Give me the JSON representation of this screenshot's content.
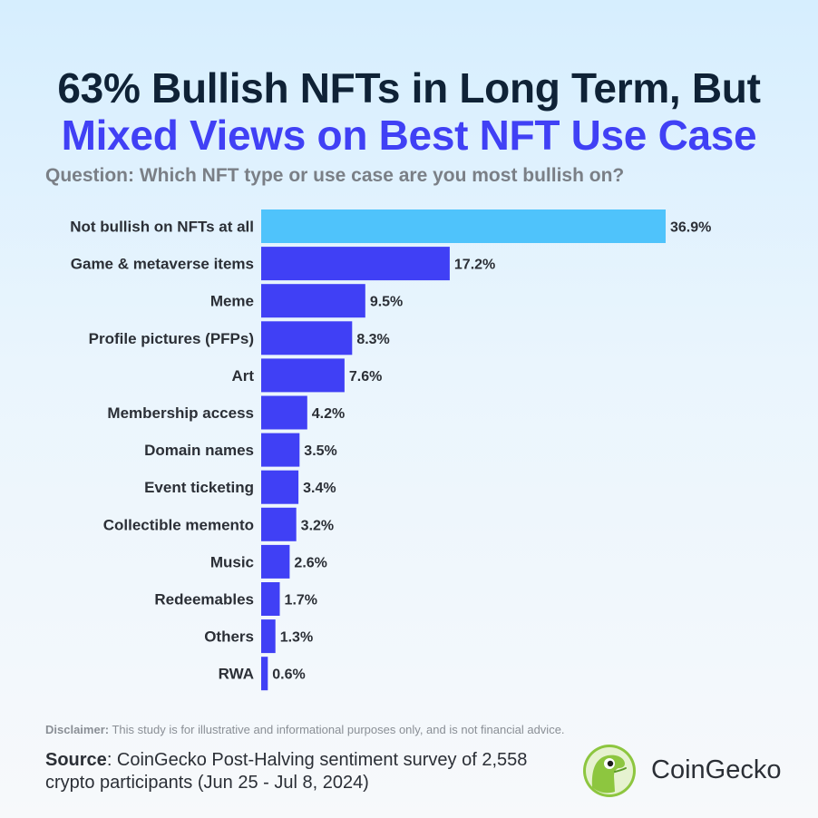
{
  "title": {
    "line1": "63% Bullish NFTs in Long Term, But",
    "line2": "Mixed Views on Best NFT Use Case"
  },
  "subtitle": "Question: Which NFT type or use case are you most bullish on?",
  "colors": {
    "highlight_bar": "#4fc3fb",
    "bar": "#4040f5",
    "title_dark": "#0f2236",
    "title_accent": "#4040f5"
  },
  "chart_data": {
    "type": "bar",
    "orientation": "horizontal",
    "categories": [
      "Not bullish on NFTs at all",
      "Game & metaverse items",
      "Meme",
      "Profile pictures (PFPs)",
      "Art",
      "Membership access",
      "Domain names",
      "Event ticketing",
      "Collectible memento",
      "Music",
      "Redeemables",
      "Others",
      "RWA"
    ],
    "values": [
      36.9,
      17.2,
      9.5,
      8.3,
      7.6,
      4.2,
      3.5,
      3.4,
      3.2,
      2.6,
      1.7,
      1.3,
      0.6
    ],
    "value_labels": [
      "36.9%",
      "17.2%",
      "9.5%",
      "8.3%",
      "7.6%",
      "4.2%",
      "3.5%",
      "3.4%",
      "3.2%",
      "2.6%",
      "1.7%",
      "1.3%",
      "0.6%"
    ],
    "highlighted_category": "Not bullish on NFTs at all",
    "unit": "%",
    "grid": false,
    "legend": "none"
  },
  "footer": {
    "disclaimer_label": "Disclaimer:",
    "disclaimer_text": " This study is for illustrative and informational purposes only, and is not financial advice.",
    "source_label": "Source",
    "source_text": ": CoinGecko Post-Halving sentiment survey of 2,558 crypto participants (Jun 25 - Jul 8, 2024)",
    "brand": "CoinGecko"
  },
  "icons": {
    "logo": "coingecko-logo-icon"
  }
}
